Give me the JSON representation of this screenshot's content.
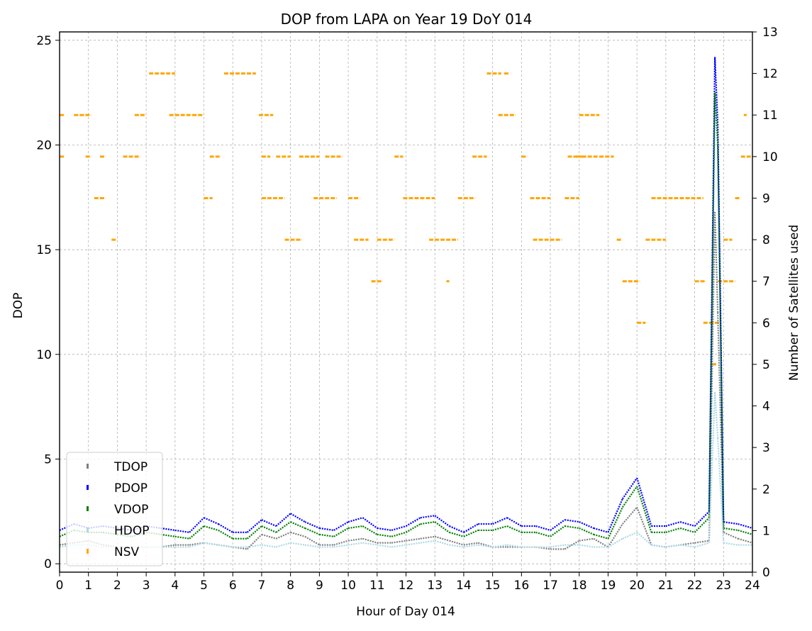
{
  "chart_data": {
    "type": "scatter",
    "title": "DOP from LAPA on Year 19 DoY 014",
    "xlabel": "Hour of Day 014",
    "ylabel": "DOP",
    "y2label": "Number of Satellites used",
    "xlim": [
      0,
      24
    ],
    "ylim": [
      -0.4,
      25.4
    ],
    "y2lim": [
      0,
      13
    ],
    "xticks": [
      "0",
      "1",
      "2",
      "3",
      "4",
      "5",
      "6",
      "7",
      "8",
      "9",
      "10",
      "11",
      "12",
      "13",
      "14",
      "15",
      "16",
      "17",
      "18",
      "19",
      "20",
      "21",
      "22",
      "23",
      "24"
    ],
    "yticks": [
      "0",
      "5",
      "10",
      "15",
      "20",
      "25"
    ],
    "y2ticks": [
      "0",
      "1",
      "2",
      "3",
      "4",
      "5",
      "6",
      "7",
      "8",
      "9",
      "10",
      "11",
      "12",
      "13"
    ],
    "grid": true,
    "legend_position": "lower-left",
    "colors": {
      "TDOP": "#808080",
      "PDOP": "#0000ff",
      "VDOP": "#008000",
      "HDOP": "#add8e6",
      "NSV": "#ffa500"
    },
    "series": [
      {
        "name": "TDOP",
        "axis": "left",
        "x": [
          0,
          0.5,
          1,
          1.5,
          2,
          2.5,
          3,
          3.5,
          4,
          4.5,
          5,
          5.5,
          6,
          6.5,
          7,
          7.5,
          8,
          8.5,
          9,
          9.5,
          10,
          10.5,
          11,
          11.5,
          12,
          12.5,
          13,
          13.5,
          14,
          14.5,
          15,
          15.5,
          16,
          16.5,
          17,
          17.5,
          18,
          18.5,
          19,
          19.5,
          20,
          20.5,
          21,
          21.5,
          22,
          22.5,
          22.7,
          22.8,
          23,
          23.5,
          24
        ],
        "y": [
          0.9,
          1.0,
          1.1,
          0.9,
          0.8,
          0.8,
          0.8,
          0.8,
          0.9,
          0.9,
          1.0,
          0.9,
          0.8,
          0.7,
          1.4,
          1.2,
          1.5,
          1.3,
          0.9,
          0.9,
          1.1,
          1.2,
          1.0,
          1.0,
          1.1,
          1.2,
          1.3,
          1.1,
          0.9,
          1.0,
          0.8,
          0.8,
          0.8,
          0.8,
          0.7,
          0.7,
          1.1,
          1.2,
          0.8,
          1.9,
          2.7,
          0.9,
          0.8,
          0.9,
          1.0,
          1.1,
          16.8,
          12.0,
          1.5,
          1.2,
          1.0
        ]
      },
      {
        "name": "PDOP",
        "axis": "left",
        "x": [
          0,
          0.5,
          1,
          1.5,
          2,
          2.5,
          3,
          3.5,
          4,
          4.5,
          5,
          5.5,
          6,
          6.5,
          7,
          7.5,
          8,
          8.5,
          9,
          9.5,
          10,
          10.5,
          11,
          11.5,
          12,
          12.5,
          13,
          13.5,
          14,
          14.5,
          15,
          15.5,
          16,
          16.5,
          17,
          17.5,
          18,
          18.5,
          19,
          19.5,
          20,
          20.5,
          21,
          21.5,
          22,
          22.5,
          22.7,
          22.8,
          23,
          23.5,
          24
        ],
        "y": [
          1.6,
          1.9,
          1.7,
          1.8,
          1.7,
          1.6,
          1.8,
          1.7,
          1.6,
          1.5,
          2.2,
          1.9,
          1.5,
          1.5,
          2.1,
          1.8,
          2.4,
          2.0,
          1.7,
          1.6,
          2.0,
          2.2,
          1.7,
          1.6,
          1.8,
          2.2,
          2.3,
          1.8,
          1.5,
          1.9,
          1.9,
          2.2,
          1.8,
          1.8,
          1.6,
          2.1,
          2.0,
          1.7,
          1.5,
          3.1,
          4.1,
          1.8,
          1.8,
          2.0,
          1.8,
          2.5,
          24.2,
          21.0,
          2.0,
          1.9,
          1.7
        ]
      },
      {
        "name": "VDOP",
        "axis": "left",
        "x": [
          0,
          0.5,
          1,
          1.5,
          2,
          2.5,
          3,
          3.5,
          4,
          4.5,
          5,
          5.5,
          6,
          6.5,
          7,
          7.5,
          8,
          8.5,
          9,
          9.5,
          10,
          10.5,
          11,
          11.5,
          12,
          12.5,
          13,
          13.5,
          14,
          14.5,
          15,
          15.5,
          16,
          16.5,
          17,
          17.5,
          18,
          18.5,
          19,
          19.5,
          20,
          20.5,
          21,
          21.5,
          22,
          22.5,
          22.7,
          22.8,
          23,
          23.5,
          24
        ],
        "y": [
          1.3,
          1.6,
          1.5,
          1.5,
          1.4,
          1.3,
          1.5,
          1.4,
          1.3,
          1.2,
          1.8,
          1.6,
          1.2,
          1.2,
          1.8,
          1.5,
          2.0,
          1.7,
          1.4,
          1.3,
          1.7,
          1.8,
          1.4,
          1.3,
          1.5,
          1.9,
          2.0,
          1.5,
          1.3,
          1.6,
          1.6,
          1.8,
          1.5,
          1.5,
          1.3,
          1.8,
          1.7,
          1.4,
          1.2,
          2.7,
          3.7,
          1.5,
          1.5,
          1.7,
          1.5,
          2.2,
          22.5,
          20.0,
          1.7,
          1.6,
          1.4
        ]
      },
      {
        "name": "HDOP",
        "axis": "left",
        "x": [
          0,
          0.5,
          1,
          1.5,
          2,
          2.5,
          3,
          3.5,
          4,
          4.5,
          5,
          5.5,
          6,
          6.5,
          7,
          7.5,
          8,
          8.5,
          9,
          9.5,
          10,
          10.5,
          11,
          11.5,
          12,
          12.5,
          13,
          13.5,
          14,
          14.5,
          15,
          15.5,
          16,
          16.5,
          17,
          17.5,
          18,
          18.5,
          19,
          19.5,
          20,
          20.5,
          21,
          21.5,
          22,
          22.5,
          22.7,
          22.8,
          23,
          23.5,
          24
        ],
        "y": [
          0.8,
          0.9,
          0.9,
          0.8,
          0.8,
          0.8,
          0.8,
          0.8,
          0.8,
          0.8,
          1.0,
          0.9,
          0.8,
          0.8,
          0.9,
          0.8,
          1.0,
          0.9,
          0.8,
          0.8,
          0.9,
          1.0,
          0.9,
          0.8,
          0.9,
          1.0,
          1.1,
          0.9,
          0.8,
          0.9,
          0.8,
          0.9,
          0.8,
          0.8,
          0.8,
          0.9,
          0.9,
          0.8,
          0.8,
          1.2,
          1.5,
          0.9,
          0.8,
          0.9,
          0.8,
          1.0,
          8.2,
          6.0,
          1.0,
          0.9,
          0.9
        ]
      },
      {
        "name": "NSV",
        "axis": "right",
        "segments": [
          [
            0,
            0.2,
            10
          ],
          [
            0,
            0.2,
            11
          ],
          [
            0.5,
            1.1,
            11
          ],
          [
            0.9,
            1.1,
            10
          ],
          [
            1.2,
            1.6,
            9
          ],
          [
            1.4,
            1.6,
            10
          ],
          [
            1.8,
            2.0,
            8
          ],
          [
            2.2,
            2.8,
            10
          ],
          [
            2.6,
            3.0,
            11
          ],
          [
            3.1,
            4.0,
            12
          ],
          [
            3.8,
            4.6,
            11
          ],
          [
            4.6,
            5.0,
            11
          ],
          [
            5.0,
            5.3,
            9
          ],
          [
            5.2,
            5.6,
            10
          ],
          [
            5.7,
            6.8,
            12
          ],
          [
            6.9,
            7.4,
            11
          ],
          [
            7.0,
            7.3,
            10
          ],
          [
            7.0,
            7.8,
            9
          ],
          [
            7.5,
            8.0,
            10
          ],
          [
            7.8,
            8.4,
            8
          ],
          [
            8.3,
            9.0,
            10
          ],
          [
            8.8,
            9.6,
            9
          ],
          [
            9.2,
            9.8,
            10
          ],
          [
            10.0,
            10.4,
            9
          ],
          [
            10.2,
            10.7,
            8
          ],
          [
            10.8,
            11.2,
            7
          ],
          [
            11.0,
            11.6,
            8
          ],
          [
            11.6,
            11.9,
            10
          ],
          [
            11.9,
            13.0,
            9
          ],
          [
            12.8,
            13.8,
            8
          ],
          [
            13.4,
            13.5,
            7
          ],
          [
            13.8,
            14.4,
            9
          ],
          [
            14.3,
            14.8,
            10
          ],
          [
            14.8,
            15.3,
            12
          ],
          [
            15.4,
            15.6,
            12
          ],
          [
            15.2,
            15.8,
            11
          ],
          [
            16.0,
            16.2,
            10
          ],
          [
            16.3,
            17.0,
            9
          ],
          [
            16.4,
            17.4,
            8
          ],
          [
            17.5,
            18.0,
            9
          ],
          [
            17.6,
            18.2,
            10
          ],
          [
            17.9,
            18.7,
            10
          ],
          [
            18.0,
            18.7,
            11
          ],
          [
            18.7,
            19.2,
            10
          ],
          [
            19.3,
            19.5,
            8
          ],
          [
            19.5,
            20.1,
            7
          ],
          [
            20.0,
            20.3,
            6
          ],
          [
            20.3,
            21.0,
            8
          ],
          [
            20.5,
            22.3,
            9
          ],
          [
            22.0,
            22.4,
            7
          ],
          [
            22.3,
            22.9,
            6
          ],
          [
            22.6,
            22.8,
            5
          ],
          [
            22.8,
            23.4,
            7
          ],
          [
            23.0,
            23.3,
            8
          ],
          [
            23.4,
            23.6,
            9
          ],
          [
            23.6,
            24.0,
            10
          ],
          [
            23.7,
            23.8,
            11
          ]
        ]
      }
    ]
  }
}
